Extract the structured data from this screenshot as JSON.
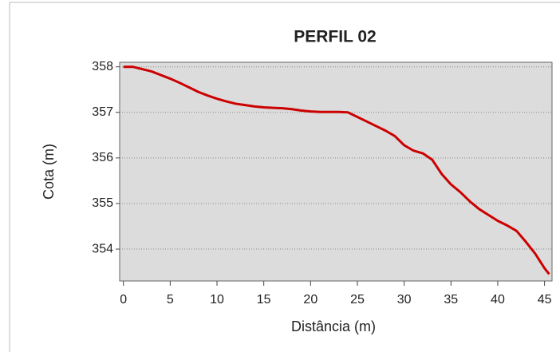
{
  "chart_data": {
    "type": "line",
    "title": "PERFIL 02",
    "xlabel": "Distância (m)",
    "ylabel": "Cota (m)",
    "x": [
      0,
      1,
      2,
      3,
      4,
      5,
      6,
      7,
      8,
      9,
      10,
      11,
      12,
      13,
      14,
      15,
      16,
      17,
      18,
      19,
      20,
      21,
      22,
      23,
      24,
      25,
      26,
      27,
      28,
      29,
      30,
      31,
      32,
      33,
      34,
      35,
      36,
      37,
      38,
      39,
      40,
      41,
      42,
      43,
      44,
      45,
      45.5
    ],
    "series": [
      {
        "name": "PERFIL 02",
        "color": "#cc0000",
        "values": [
          358.0,
          358.0,
          357.95,
          357.9,
          357.82,
          357.74,
          357.65,
          357.55,
          357.45,
          357.37,
          357.3,
          357.24,
          357.19,
          357.16,
          357.13,
          357.11,
          357.1,
          357.09,
          357.07,
          357.04,
          357.02,
          357.01,
          357.01,
          357.01,
          357.0,
          356.9,
          356.8,
          356.7,
          356.6,
          356.48,
          356.28,
          356.16,
          356.1,
          355.96,
          355.65,
          355.42,
          355.25,
          355.05,
          354.88,
          354.75,
          354.62,
          354.52,
          354.4,
          354.16,
          353.9,
          353.58,
          353.45
        ]
      }
    ],
    "xlim": [
      -0.4,
      45.8
    ],
    "xticks": [
      0,
      5,
      10,
      15,
      20,
      25,
      30,
      35,
      40,
      45
    ],
    "ylim": [
      353.3,
      358.1
    ],
    "yticks": [
      354,
      355,
      356,
      357,
      358
    ],
    "grid": true
  }
}
